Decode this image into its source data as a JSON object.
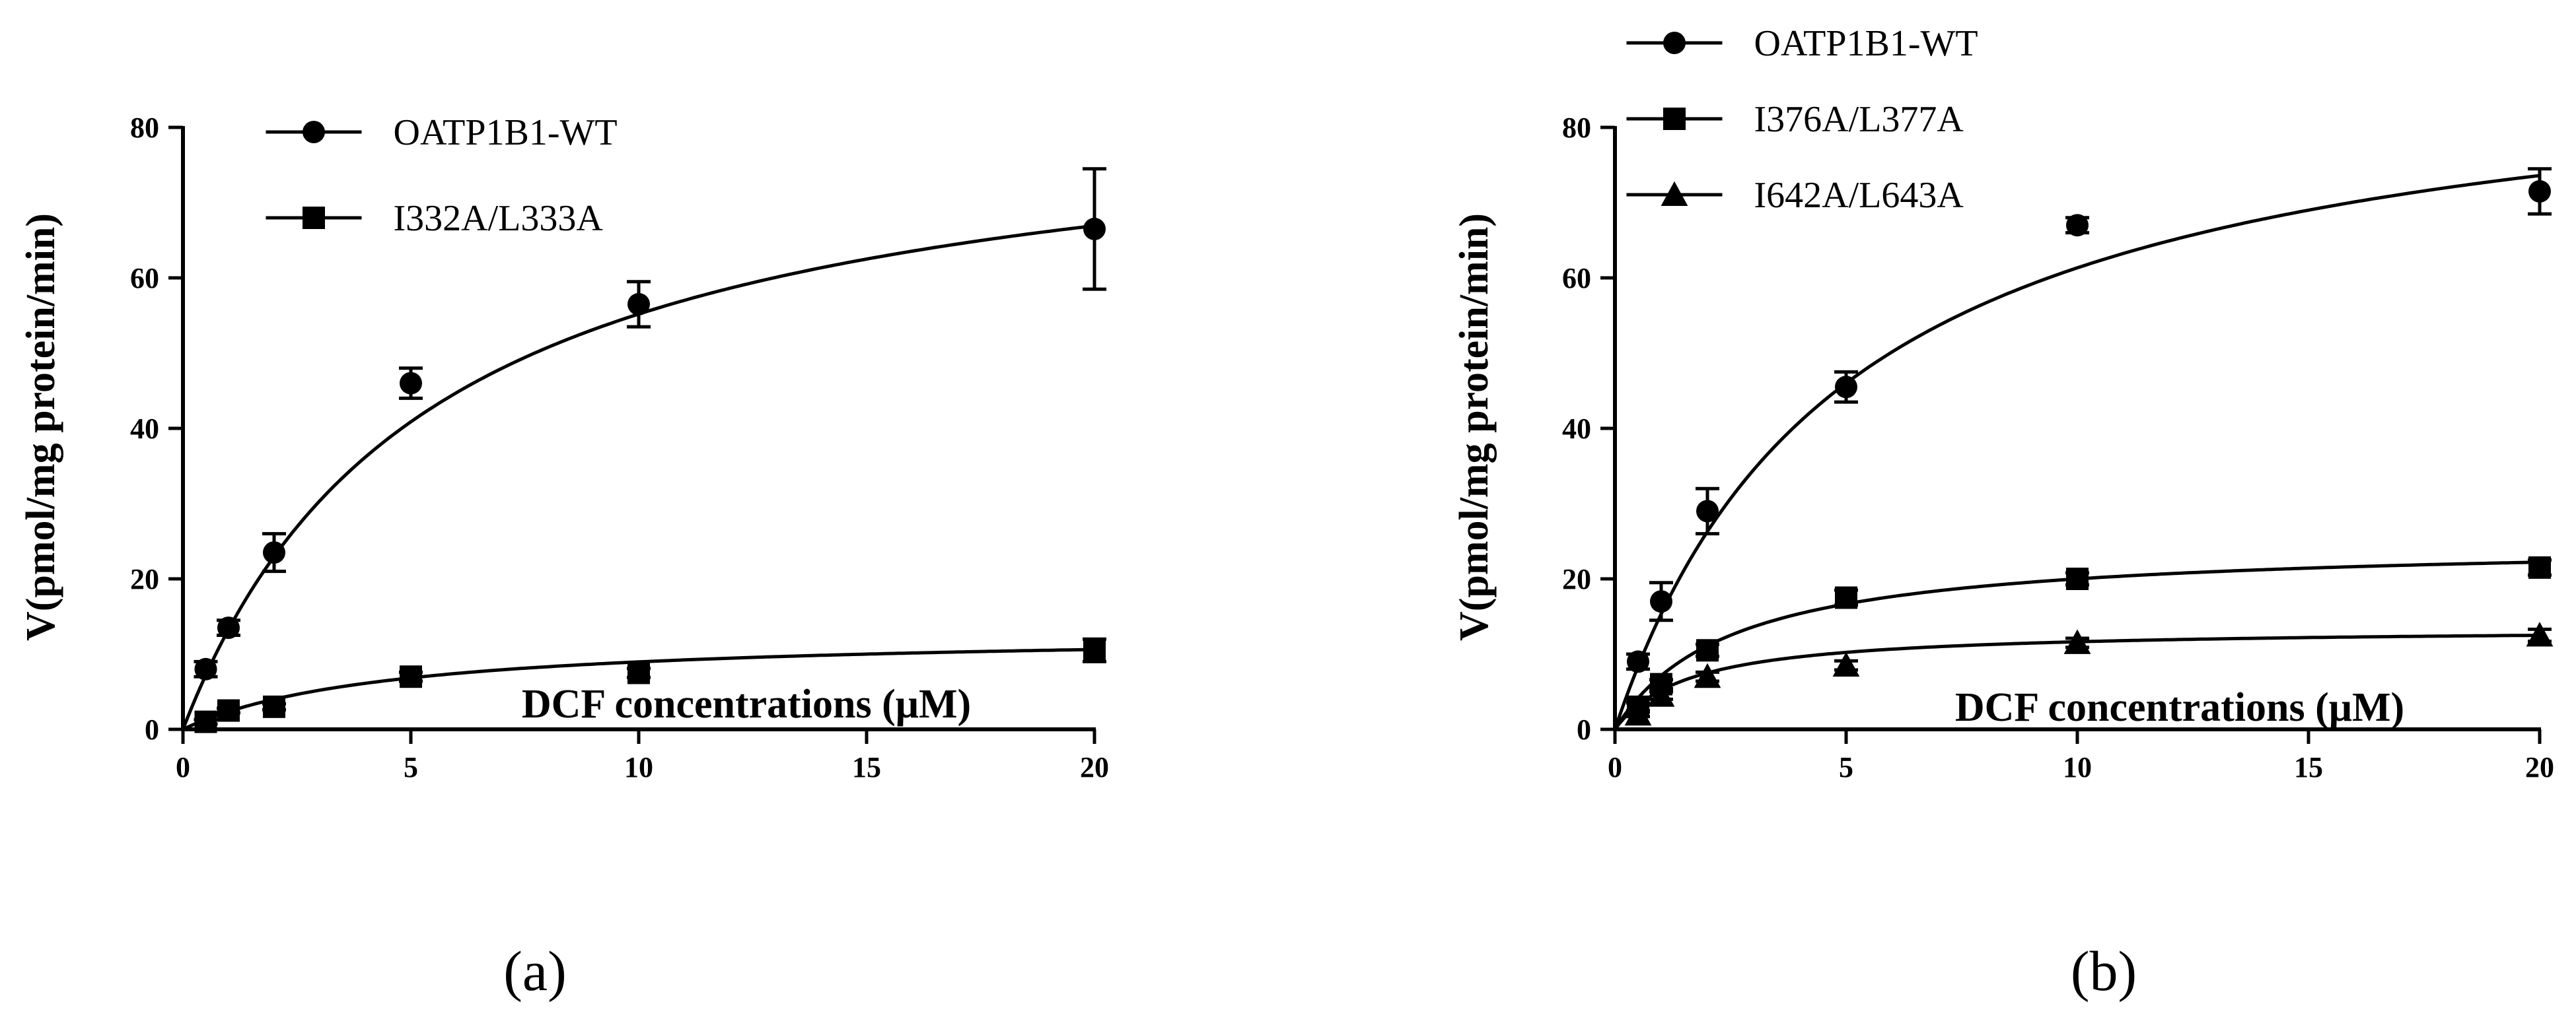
{
  "chart_data": [
    {
      "type": "scatter",
      "panel_label": "(a)",
      "xlabel": "DCF concentrations (μM)",
      "ylabel": "V(pmol/mg protein/min)",
      "xlim": [
        0,
        20
      ],
      "ylim": [
        0,
        80
      ],
      "xticks": [
        "0",
        "5",
        "10",
        "15",
        "20"
      ],
      "yticks": [
        "0",
        "20",
        "40",
        "60",
        "80"
      ],
      "legend_position": "top-left",
      "series": [
        {
          "name": "OATP1B1-WT",
          "marker": "circle",
          "x": [
            0.5,
            1,
            2,
            5,
            10,
            20
          ],
          "y": [
            8,
            13.5,
            23.5,
            46,
            56.5,
            66.5
          ],
          "err": [
            1,
            1,
            2.5,
            2,
            3,
            8
          ],
          "fit": {
            "vmax": 85,
            "km": 5.4
          }
        },
        {
          "name": "I332A/L333A",
          "marker": "square",
          "x": [
            0.5,
            1,
            2,
            5,
            10,
            20
          ],
          "y": [
            1,
            2.5,
            3,
            7,
            7.5,
            10.5
          ],
          "err": [
            0.3,
            0.3,
            0.4,
            0.6,
            0.6,
            1.5
          ],
          "fit": {
            "vmax": 13,
            "km": 4.5
          }
        }
      ]
    },
    {
      "type": "scatter",
      "panel_label": "(b)",
      "xlabel": "DCF concentrations (μM)",
      "ylabel": "V(pmol/mg protein/min)",
      "xlim": [
        0,
        20
      ],
      "ylim": [
        0,
        80
      ],
      "xticks": [
        "0",
        "5",
        "10",
        "15",
        "20"
      ],
      "yticks": [
        "0",
        "20",
        "40",
        "60",
        "80"
      ],
      "legend_position": "top-left",
      "series": [
        {
          "name": "OATP1B1-WT",
          "marker": "circle",
          "x": [
            0.5,
            1,
            2,
            5,
            10,
            20
          ],
          "y": [
            9,
            17,
            29,
            45.5,
            67,
            71.5
          ],
          "err": [
            1,
            2.5,
            3,
            2,
            1,
            3
          ],
          "fit": {
            "vmax": 92,
            "km": 5
          }
        },
        {
          "name": "I376A/L377A",
          "marker": "square",
          "x": [
            0.5,
            1,
            2,
            5,
            10,
            20
          ],
          "y": [
            3,
            6,
            10.5,
            17.5,
            20,
            21.5
          ],
          "err": [
            0.5,
            0.6,
            0.8,
            1,
            0.8,
            1
          ],
          "fit": {
            "vmax": 25,
            "km": 2.5
          }
        },
        {
          "name": "I642A/L643A",
          "marker": "triangle",
          "x": [
            0.5,
            1,
            2,
            5,
            10,
            20
          ],
          "y": [
            2,
            4.5,
            7,
            8.5,
            11.5,
            12.5
          ],
          "err": [
            0.3,
            0.5,
            0.6,
            0.6,
            0.6,
            0.8
          ],
          "fit": {
            "vmax": 13.5,
            "km": 1.6
          }
        }
      ]
    }
  ]
}
